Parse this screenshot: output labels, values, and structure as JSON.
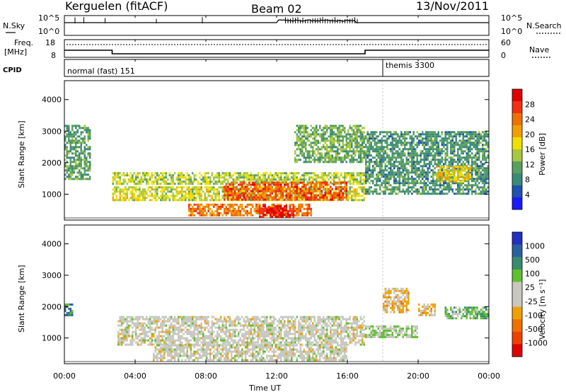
{
  "header": {
    "station": "Kerguelen (fitACF)",
    "beam": "Beam 02",
    "date": "13/Nov/2011"
  },
  "sky_panel": {
    "left_label": "N.Sky",
    "left_ticks": [
      "10^5",
      "10^0"
    ],
    "right_ticks": [
      "10^5",
      "10^0"
    ],
    "right_label": "N.Search"
  },
  "freq_panel": {
    "left_label_1": "Freq.",
    "left_label_2": "[MHz]",
    "left_ticks": [
      "18",
      "8"
    ],
    "right_ticks": [
      "60",
      "0"
    ],
    "right_label": "Nave",
    "cpid_label": "CPID"
  },
  "cpid": {
    "mode1": "normal (fast) 151",
    "mode2": "themis 3300"
  },
  "power_panel": {
    "ylabel": "Slant Range [km]",
    "yticks": [
      "4000",
      "3000",
      "2000",
      "1000"
    ],
    "colorbar_label": "Power [dB]",
    "colorbar_ticks": [
      "28",
      "24",
      "20",
      "16",
      "12",
      "8",
      "4"
    ],
    "colors": [
      "#1a1aff",
      "#2050b0",
      "#3a8a7a",
      "#5aa060",
      "#a8c840",
      "#f0e000",
      "#f0a000",
      "#f07000",
      "#f03010",
      "#e00000"
    ]
  },
  "velocity_panel": {
    "ylabel": "Slant Range [km]",
    "yticks": [
      "4000",
      "3000",
      "2000",
      "1000"
    ],
    "colorbar_label": "Velocity [m s⁻¹]",
    "colorbar_ticks": [
      "1000",
      "500",
      "100",
      "25",
      "-25",
      "-100",
      "-500",
      "-1000"
    ],
    "colors": [
      "#2030c0",
      "#2a60a0",
      "#3a8a70",
      "#60c030",
      "#c8c8c0",
      "#c8c8c0",
      "#f0a000",
      "#f07000",
      "#f04000",
      "#e00000"
    ]
  },
  "xaxis": {
    "ticks": [
      "00:00",
      "04:00",
      "08:00",
      "12:00",
      "16:00",
      "20:00",
      "00:00"
    ],
    "label": "Time UT"
  },
  "chart_data": {
    "type": "heatmap",
    "title": "Kerguelen (fitACF) Beam 02 13/Nov/2011",
    "xlabel": "Time UT",
    "ylabel": "Slant Range [km]",
    "xlim": [
      0,
      24
    ],
    "ylim": [
      180,
      4600
    ],
    "series": [
      {
        "name": "Power [dB]",
        "colorbar_range": [
          0,
          30
        ],
        "echo_regions": [
          {
            "t": [
              0.0,
              1.5
            ],
            "range": [
              1500,
              3200
            ],
            "value": 10
          },
          {
            "t": [
              2.7,
              17.0
            ],
            "range": [
              1300,
              1700
            ],
            "value": 14
          },
          {
            "t": [
              2.7,
              17.0
            ],
            "range": [
              800,
              1250
            ],
            "value": 15
          },
          {
            "t": [
              9.0,
              16.0
            ],
            "range": [
              800,
              1400
            ],
            "value": 24
          },
          {
            "t": [
              7.0,
              14.0
            ],
            "range": [
              300,
              700
            ],
            "value": 22
          },
          {
            "t": [
              11.0,
              13.0
            ],
            "range": [
              300,
              650
            ],
            "value": 28
          },
          {
            "t": [
              13.0,
              17.0
            ],
            "range": [
              2000,
              3200
            ],
            "value": 11
          },
          {
            "t": [
              17.0,
              24.0
            ],
            "range": [
              1000,
              3000
            ],
            "value": 9
          },
          {
            "t": [
              21.0,
              23.0
            ],
            "range": [
              1400,
              1900
            ],
            "value": 17
          }
        ]
      },
      {
        "name": "Velocity [m s-1]",
        "colorbar_range": [
          -1000,
          1000
        ],
        "echo_regions": [
          {
            "t": [
              3.0,
              17.0
            ],
            "range": [
              800,
              1700
            ],
            "value": 0
          },
          {
            "t": [
              5.0,
              16.0
            ],
            "range": [
              300,
              800
            ],
            "value": 0
          },
          {
            "t": [
              17.0,
              20.0
            ],
            "range": [
              1000,
              1400
            ],
            "value": 150
          },
          {
            "t": [
              18.0,
              19.5
            ],
            "range": [
              1800,
              2600
            ],
            "value": -200
          },
          {
            "t": [
              20.0,
              21.0
            ],
            "range": [
              1700,
              2100
            ],
            "value": -200
          },
          {
            "t": [
              21.5,
              24.0
            ],
            "range": [
              1600,
              2000
            ],
            "value": 300
          },
          {
            "t": [
              0.0,
              0.5
            ],
            "range": [
              1700,
              2100
            ],
            "value": 500
          }
        ]
      }
    ],
    "frequency_MHz": [
      {
        "t": [
          0.0,
          2.7
        ],
        "value": 12
      },
      {
        "t": [
          2.7,
          17.0
        ],
        "value": 10
      },
      {
        "t": [
          17.0,
          24.0
        ],
        "value": 12
      }
    ]
  }
}
